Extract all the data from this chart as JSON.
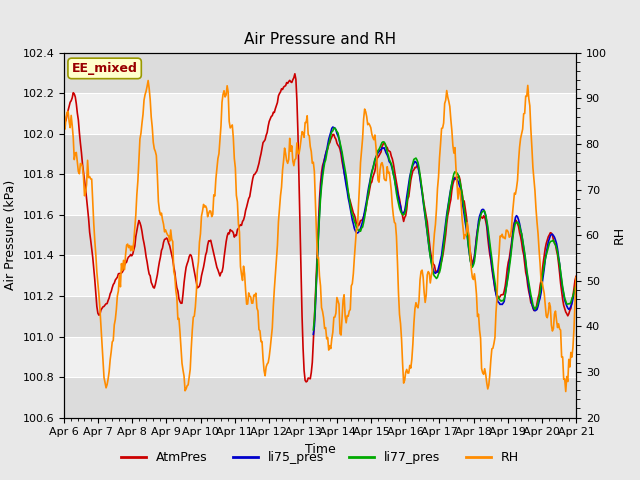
{
  "title": "Air Pressure and RH",
  "xlabel": "Time",
  "ylabel_left": "Air Pressure (kPa)",
  "ylabel_right": "RH",
  "ylim_left": [
    100.6,
    102.4
  ],
  "ylim_right": [
    20,
    100
  ],
  "yticks_left": [
    100.6,
    100.8,
    101.0,
    101.2,
    101.4,
    101.6,
    101.8,
    102.0,
    102.2,
    102.4
  ],
  "yticks_right": [
    20,
    30,
    40,
    50,
    60,
    70,
    80,
    90,
    100
  ],
  "xtick_labels": [
    "Apr 6",
    "Apr 7",
    "Apr 8",
    "Apr 9",
    "Apr 10",
    "Apr 11",
    "Apr 12",
    "Apr 13",
    "Apr 14",
    "Apr 15",
    "Apr 16",
    "Apr 17",
    "Apr 18",
    "Apr 19",
    "Apr 20",
    "Apr 21"
  ],
  "annotation_text": "EE_mixed",
  "annotation_box_facecolor": "#ffffcc",
  "annotation_box_edgecolor": "#999900",
  "fig_facecolor": "#e8e8e8",
  "plot_facecolor": "#f0f0f0",
  "band_colors": [
    "#dcdcdc",
    "#f0f0f0"
  ],
  "line_colors": {
    "AtmPres": "#cc0000",
    "li75_pres": "#0000cc",
    "li77_pres": "#00aa00",
    "RH": "#ff8c00"
  },
  "line_widths": {
    "AtmPres": 1.2,
    "li75_pres": 1.2,
    "li77_pres": 1.2,
    "RH": 1.2
  },
  "title_fontsize": 11,
  "axis_label_fontsize": 9,
  "tick_fontsize": 8,
  "legend_fontsize": 9
}
